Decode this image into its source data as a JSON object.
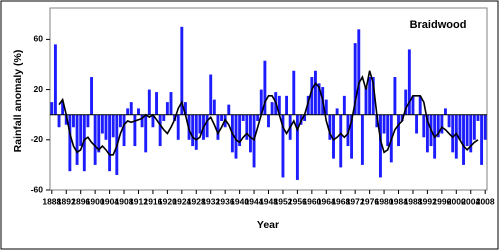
{
  "chart_data": {
    "type": "bar",
    "title": "Braidwood",
    "x_label": "Year",
    "y_label": "Rainfall anomaly (%)",
    "x": [
      1888,
      1889,
      1890,
      1891,
      1892,
      1893,
      1894,
      1895,
      1896,
      1897,
      1898,
      1899,
      1900,
      1901,
      1902,
      1903,
      1904,
      1905,
      1906,
      1907,
      1908,
      1909,
      1910,
      1911,
      1912,
      1913,
      1914,
      1915,
      1916,
      1917,
      1918,
      1919,
      1920,
      1921,
      1922,
      1923,
      1924,
      1925,
      1926,
      1927,
      1928,
      1929,
      1930,
      1931,
      1932,
      1933,
      1934,
      1935,
      1936,
      1937,
      1938,
      1939,
      1940,
      1941,
      1942,
      1943,
      1944,
      1945,
      1946,
      1947,
      1948,
      1949,
      1950,
      1951,
      1952,
      1953,
      1954,
      1955,
      1956,
      1957,
      1958,
      1959,
      1960,
      1961,
      1962,
      1963,
      1964,
      1965,
      1966,
      1967,
      1968,
      1969,
      1970,
      1971,
      1972,
      1973,
      1974,
      1975,
      1976,
      1977,
      1978,
      1979,
      1980,
      1981,
      1982,
      1983,
      1984,
      1985,
      1986,
      1987,
      1988,
      1989,
      1990,
      1991,
      1992,
      1993,
      1994,
      1995,
      1996,
      1997,
      1998,
      1999,
      2000,
      2001,
      2002,
      2003,
      2004,
      2005,
      2006,
      2007,
      2008
    ],
    "series": [
      {
        "type": "bar",
        "color": "#1c1cff",
        "values": [
          10,
          56,
          -10,
          10,
          -8,
          -45,
          -10,
          -40,
          -25,
          -45,
          -10,
          30,
          -40,
          -30,
          -15,
          -20,
          -45,
          -18,
          -48,
          -10,
          -25,
          5,
          10,
          -25,
          5,
          -10,
          -30,
          20,
          -10,
          18,
          -25,
          -5,
          10,
          18,
          -5,
          -20,
          70,
          10,
          -20,
          -25,
          -28,
          -15,
          -20,
          -18,
          32,
          12,
          -20,
          -5,
          -10,
          8,
          -30,
          -35,
          -25,
          -5,
          -20,
          -30,
          -42,
          -5,
          20,
          43,
          -10,
          10,
          18,
          15,
          -50,
          15,
          -20,
          35,
          -52,
          -8,
          -5,
          15,
          30,
          35,
          25,
          22,
          12,
          -20,
          -35,
          5,
          -42,
          15,
          -25,
          -35,
          57,
          68,
          -40,
          22,
          30,
          30,
          -10,
          -50,
          -15,
          -25,
          -38,
          30,
          -25,
          -5,
          20,
          52,
          15,
          -15,
          15,
          -18,
          -30,
          -25,
          -35,
          -18,
          -15,
          5,
          -10,
          -30,
          -35,
          -20,
          -40,
          -25,
          -30,
          -20,
          -5,
          -40,
          -20
        ]
      },
      {
        "type": "line",
        "color": "#000000",
        "values": [
          null,
          null,
          8,
          12,
          0,
          -15,
          -25,
          -30,
          -28,
          -20,
          -18,
          -22,
          -25,
          -28,
          -25,
          -28,
          -32,
          -32,
          -25,
          -15,
          -8,
          -5,
          -6,
          -5,
          -4,
          -3,
          0,
          -2,
          0,
          -4,
          -8,
          -12,
          -15,
          -10,
          -4,
          5,
          10,
          0,
          -12,
          -18,
          -20,
          -18,
          -10,
          -5,
          -2,
          -8,
          -15,
          -10,
          -4,
          -8,
          -15,
          -20,
          -22,
          -18,
          -15,
          -18,
          -20,
          -10,
          0,
          10,
          15,
          15,
          10,
          0,
          -10,
          -15,
          -10,
          -5,
          -12,
          -5,
          0,
          10,
          20,
          25,
          22,
          12,
          -5,
          -15,
          -20,
          -18,
          -15,
          -18,
          -15,
          -5,
          10,
          25,
          30,
          20,
          35,
          25,
          0,
          -20,
          -30,
          -28,
          -20,
          -12,
          -8,
          -5,
          5,
          10,
          15,
          15,
          15,
          10,
          -5,
          -12,
          -18,
          -15,
          -10,
          -12,
          -15,
          -18,
          -15,
          -20,
          -25,
          -28,
          -25,
          -22,
          -20,
          null,
          null
        ]
      }
    ],
    "xlim": [
      1887.5,
      2008.5
    ],
    "ylim": [
      -60,
      85
    ],
    "xticks": [
      1888,
      1892,
      1896,
      1900,
      1904,
      1908,
      1912,
      1916,
      1920,
      1924,
      1928,
      1932,
      1936,
      1940,
      1944,
      1948,
      1952,
      1956,
      1960,
      1964,
      1968,
      1972,
      1976,
      1980,
      1984,
      1988,
      1992,
      1996,
      2000,
      2004,
      2008
    ],
    "yticks": [
      -60,
      -20,
      20,
      60
    ]
  }
}
